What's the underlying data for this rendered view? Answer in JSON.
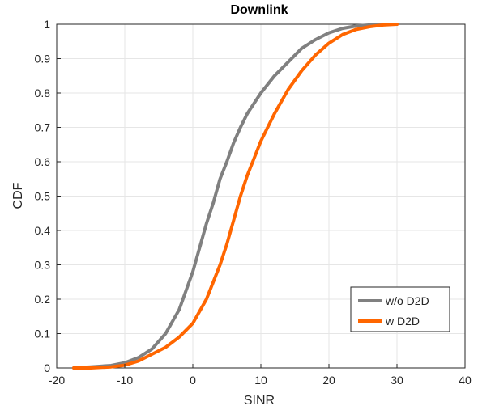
{
  "chart_data": {
    "type": "line",
    "title": "Downlink",
    "xlabel": "SINR",
    "ylabel": "CDF",
    "xlim": [
      -20,
      40
    ],
    "ylim": [
      0,
      1
    ],
    "xticks": [
      -20,
      -10,
      0,
      10,
      20,
      30,
      40
    ],
    "xtick_labels": [
      "-20",
      "-10",
      "0",
      "10",
      "20",
      "30",
      "40"
    ],
    "yticks": [
      0,
      0.1,
      0.2,
      0.3,
      0.4,
      0.5,
      0.6,
      0.7,
      0.8,
      0.9,
      1
    ],
    "ytick_labels": [
      "0",
      "0.1",
      "0.2",
      "0.3",
      "0.4",
      "0.5",
      "0.6",
      "0.7",
      "0.8",
      "0.9",
      "1"
    ],
    "grid": true,
    "legend_position": "bottom-right",
    "series": [
      {
        "name": "w/o D2D",
        "color": "#808080",
        "x": [
          -17.5,
          -15,
          -12,
          -10,
          -8,
          -6,
          -4,
          -2,
          0,
          1,
          2,
          3,
          4,
          5,
          6,
          7,
          8,
          10,
          12,
          14,
          16,
          18,
          20,
          22,
          24,
          26,
          28,
          30
        ],
        "y": [
          0.0,
          0.003,
          0.007,
          0.015,
          0.03,
          0.055,
          0.1,
          0.17,
          0.28,
          0.35,
          0.42,
          0.48,
          0.55,
          0.6,
          0.655,
          0.7,
          0.74,
          0.8,
          0.85,
          0.89,
          0.93,
          0.955,
          0.975,
          0.988,
          0.995,
          0.998,
          1.0,
          1.0
        ]
      },
      {
        "name": "w D2D",
        "color": "#ff6600",
        "x": [
          -17.5,
          -15,
          -12,
          -10,
          -8,
          -6,
          -4,
          -2,
          0,
          2,
          4,
          5,
          6,
          7,
          8,
          9,
          10,
          12,
          14,
          16,
          18,
          20,
          22,
          24,
          26,
          28,
          30
        ],
        "y": [
          0.0,
          0.0,
          0.003,
          0.008,
          0.02,
          0.04,
          0.06,
          0.09,
          0.13,
          0.2,
          0.3,
          0.36,
          0.43,
          0.5,
          0.56,
          0.61,
          0.66,
          0.74,
          0.81,
          0.865,
          0.91,
          0.945,
          0.97,
          0.985,
          0.993,
          0.998,
          1.0
        ]
      }
    ]
  }
}
